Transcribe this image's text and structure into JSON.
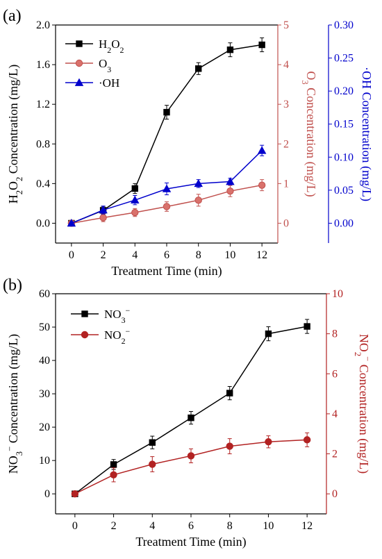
{
  "chart_data": [
    {
      "panel_label": "(a)",
      "type": "line",
      "x": [
        0,
        2,
        4,
        6,
        8,
        10,
        12
      ],
      "x_ticks": [
        "0",
        "2",
        "4",
        "6",
        "8",
        "10",
        "12"
      ],
      "xlabel": "Treatment Time (min)",
      "xlim": [
        -1,
        13
      ],
      "axes": {
        "left": {
          "label": "H₂O₂ Concentration (mg/L)",
          "lim": [
            -0.2,
            2.0
          ],
          "ticks": [
            "0.0",
            "0.4",
            "0.8",
            "1.2",
            "1.6",
            "2.0"
          ],
          "tick_values": [
            0,
            0.4,
            0.8,
            1.2,
            1.6,
            2.0
          ],
          "color": "#000000"
        },
        "right1": {
          "label": "O₃ Concentration (mg/L)",
          "lim": [
            -0.5,
            5
          ],
          "ticks": [
            "0",
            "1",
            "2",
            "3",
            "4",
            "5"
          ],
          "tick_values": [
            0,
            1,
            2,
            3,
            4,
            5
          ],
          "color": "#c0504d"
        },
        "right2": {
          "label": "·OH Concentration (mg/L)",
          "lim": [
            -0.03,
            0.3
          ],
          "ticks": [
            "0.00",
            "0.05",
            "0.10",
            "0.15",
            "0.20",
            "0.25",
            "0.30"
          ],
          "tick_values": [
            0,
            0.05,
            0.1,
            0.15,
            0.2,
            0.25,
            0.3
          ],
          "color": "#0000cc"
        }
      },
      "series": [
        {
          "name": "H₂O₂",
          "axis": "left",
          "color": "#000000",
          "marker": "square",
          "values": [
            0,
            0.13,
            0.35,
            1.12,
            1.56,
            1.75,
            1.8
          ],
          "errors": [
            0.01,
            0.04,
            0.05,
            0.07,
            0.06,
            0.07,
            0.07
          ]
        },
        {
          "name": "O₃",
          "axis": "right1",
          "color": "#c0504d",
          "marker": "circle",
          "values": [
            0,
            0.14,
            0.27,
            0.42,
            0.58,
            0.81,
            0.96
          ],
          "errors": [
            0.02,
            0.1,
            0.1,
            0.12,
            0.15,
            0.14,
            0.14
          ]
        },
        {
          "name": "·OH",
          "axis": "right2",
          "color": "#0000cc",
          "marker": "triangle",
          "values": [
            0,
            0.02,
            0.035,
            0.052,
            0.06,
            0.063,
            0.11
          ],
          "errors": [
            0.002,
            0.006,
            0.007,
            0.009,
            0.006,
            0.005,
            0.008
          ]
        }
      ],
      "legend": "top-left"
    },
    {
      "panel_label": "(b)",
      "type": "line",
      "x": [
        0,
        2,
        4,
        6,
        8,
        10,
        12
      ],
      "x_ticks": [
        "0",
        "2",
        "4",
        "6",
        "8",
        "10",
        "12"
      ],
      "xlabel": "Treatment Time (min)",
      "xlim": [
        -1,
        13
      ],
      "axes": {
        "left": {
          "label": "NO₃⁻ Concentration (mg/L)",
          "lim": [
            -6,
            60
          ],
          "ticks": [
            "0",
            "10",
            "20",
            "30",
            "40",
            "50",
            "60"
          ],
          "tick_values": [
            0,
            10,
            20,
            30,
            40,
            50,
            60
          ],
          "color": "#000000"
        },
        "right1": {
          "label": "NO₂⁻ Concentration (mg/L)",
          "lim": [
            -1,
            10
          ],
          "ticks": [
            "0",
            "2",
            "4",
            "6",
            "8",
            "10"
          ],
          "tick_values": [
            0,
            2,
            4,
            6,
            8,
            10
          ],
          "color": "#b22222"
        }
      },
      "series": [
        {
          "name": "NO₃⁻",
          "axis": "left",
          "color": "#000000",
          "marker": "square",
          "values": [
            0,
            8.8,
            15.4,
            22.8,
            30.2,
            48.0,
            50.2
          ],
          "errors": [
            0.3,
            1.5,
            1.9,
            1.9,
            2.0,
            2.1,
            2.1
          ]
        },
        {
          "name": "NO₂⁻",
          "axis": "right1",
          "color": "#b22222",
          "marker": "circle",
          "values": [
            0,
            0.95,
            1.48,
            1.9,
            2.38,
            2.6,
            2.7
          ],
          "errors": [
            0.05,
            0.35,
            0.38,
            0.35,
            0.38,
            0.3,
            0.35
          ]
        }
      ],
      "legend": "top-left"
    }
  ]
}
